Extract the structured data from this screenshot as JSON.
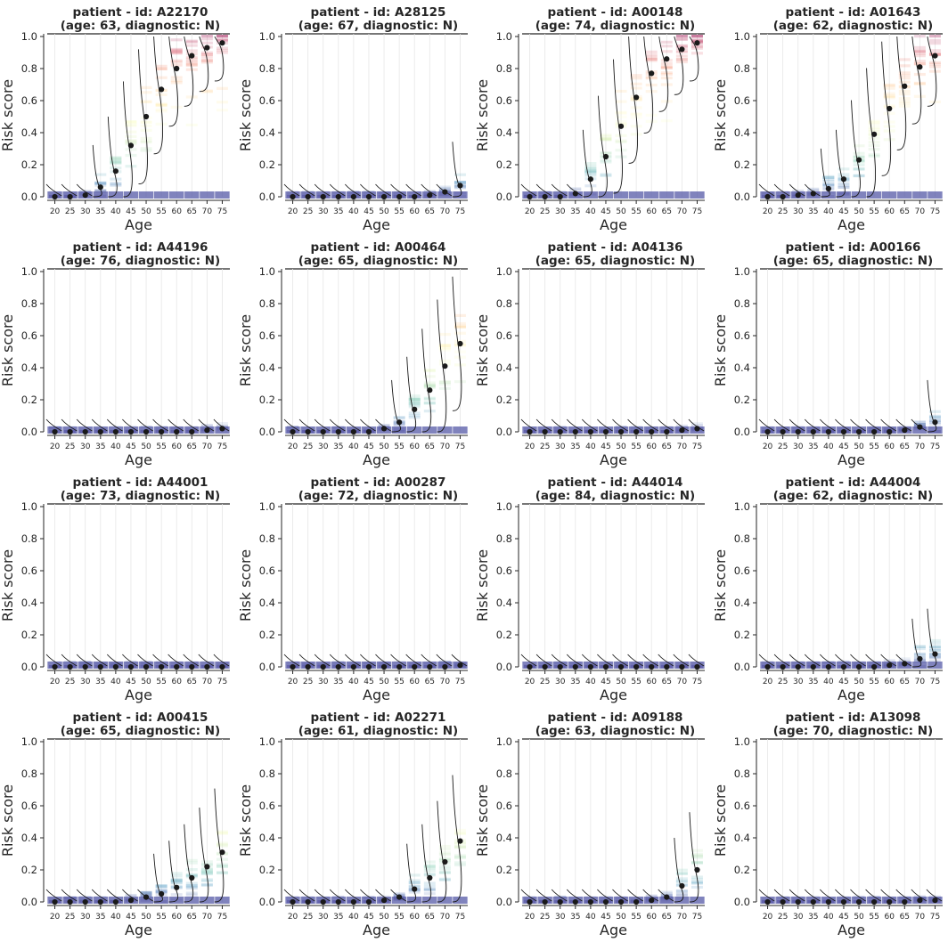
{
  "chart_data": {
    "type": "distribution-grid",
    "xlabel": "Age",
    "ylabel": "Risk score",
    "x": [
      20,
      25,
      30,
      35,
      40,
      45,
      50,
      55,
      60,
      65,
      70,
      75
    ],
    "ylim": [
      0,
      1
    ],
    "yticks": [
      "0.0",
      "0.2",
      "0.4",
      "0.6",
      "0.8",
      "1.0"
    ],
    "panels": [
      {
        "title": "patient - id: A22170",
        "subtitle": "(age: 63, diagnostic: N)",
        "mean": [
          0.0,
          0.0,
          0.01,
          0.06,
          0.16,
          0.32,
          0.5,
          0.67,
          0.8,
          0.88,
          0.93,
          0.96
        ]
      },
      {
        "title": "patient - id: A28125",
        "subtitle": "(age: 67, diagnostic: N)",
        "mean": [
          0.0,
          0.0,
          0.0,
          0.0,
          0.0,
          0.0,
          0.0,
          0.0,
          0.0,
          0.01,
          0.03,
          0.07
        ]
      },
      {
        "title": "patient - id: A00148",
        "subtitle": "(age: 74, diagnostic: N)",
        "mean": [
          0.0,
          0.0,
          0.0,
          0.02,
          0.11,
          0.25,
          0.44,
          0.62,
          0.77,
          0.86,
          0.92,
          0.96
        ]
      },
      {
        "title": "patient - id: A01643",
        "subtitle": "(age: 62, diagnostic: N)",
        "mean": [
          0.0,
          0.0,
          0.01,
          0.02,
          0.05,
          0.11,
          0.23,
          0.39,
          0.55,
          0.69,
          0.81,
          0.88
        ]
      },
      {
        "title": "patient - id: A44196",
        "subtitle": "(age: 76, diagnostic: N)",
        "mean": [
          0.0,
          0.0,
          0.0,
          0.0,
          0.0,
          0.0,
          0.0,
          0.0,
          0.0,
          0.0,
          0.01,
          0.02
        ]
      },
      {
        "title": "patient - id: A00464",
        "subtitle": "(age: 65, diagnostic: N)",
        "mean": [
          0.0,
          0.0,
          0.0,
          0.0,
          0.0,
          0.0,
          0.02,
          0.06,
          0.14,
          0.26,
          0.41,
          0.55
        ]
      },
      {
        "title": "patient - id: A04136",
        "subtitle": "(age: 65, diagnostic: N)",
        "mean": [
          0.0,
          0.0,
          0.0,
          0.0,
          0.0,
          0.0,
          0.0,
          0.0,
          0.0,
          0.0,
          0.01,
          0.02
        ]
      },
      {
        "title": "patient - id: A00166",
        "subtitle": "(age: 65, diagnostic: N)",
        "mean": [
          0.0,
          0.0,
          0.0,
          0.0,
          0.0,
          0.0,
          0.0,
          0.0,
          0.0,
          0.01,
          0.03,
          0.06
        ]
      },
      {
        "title": "patient - id: A44001",
        "subtitle": "(age: 73, diagnostic: N)",
        "mean": [
          0.0,
          0.0,
          0.0,
          0.0,
          0.0,
          0.0,
          0.0,
          0.0,
          0.0,
          0.0,
          0.0,
          0.0
        ]
      },
      {
        "title": "patient - id: A00287",
        "subtitle": "(age: 72, diagnostic: N)",
        "mean": [
          0.0,
          0.0,
          0.0,
          0.0,
          0.0,
          0.0,
          0.0,
          0.0,
          0.0,
          0.0,
          0.0,
          0.01
        ]
      },
      {
        "title": "patient - id: A44014",
        "subtitle": "(age: 84, diagnostic: N)",
        "mean": [
          0.0,
          0.0,
          0.0,
          0.0,
          0.0,
          0.0,
          0.0,
          0.0,
          0.0,
          0.0,
          0.0,
          0.0
        ]
      },
      {
        "title": "patient - id: A44004",
        "subtitle": "(age: 62, diagnostic: N)",
        "mean": [
          0.0,
          0.0,
          0.0,
          0.0,
          0.0,
          0.0,
          0.0,
          0.0,
          0.01,
          0.02,
          0.05,
          0.08
        ]
      },
      {
        "title": "patient - id: A00415",
        "subtitle": "(age: 65, diagnostic: N)",
        "mean": [
          0.0,
          0.0,
          0.0,
          0.0,
          0.0,
          0.01,
          0.03,
          0.05,
          0.09,
          0.15,
          0.22,
          0.31
        ]
      },
      {
        "title": "patient - id: A02271",
        "subtitle": "(age: 61, diagnostic: N)",
        "mean": [
          0.0,
          0.0,
          0.0,
          0.0,
          0.0,
          0.0,
          0.01,
          0.03,
          0.08,
          0.15,
          0.25,
          0.38
        ]
      },
      {
        "title": "patient - id: A09188",
        "subtitle": "(age: 63, diagnostic: N)",
        "mean": [
          0.0,
          0.0,
          0.0,
          0.0,
          0.0,
          0.0,
          0.0,
          0.0,
          0.01,
          0.03,
          0.1,
          0.2
        ]
      },
      {
        "title": "patient - id: A13098",
        "subtitle": "(age: 70, diagnostic: N)",
        "mean": [
          0.0,
          0.0,
          0.0,
          0.0,
          0.0,
          0.0,
          0.0,
          0.0,
          0.0,
          0.0,
          0.01,
          0.01
        ]
      }
    ],
    "colormap": "Spectral_r",
    "grid": true
  }
}
